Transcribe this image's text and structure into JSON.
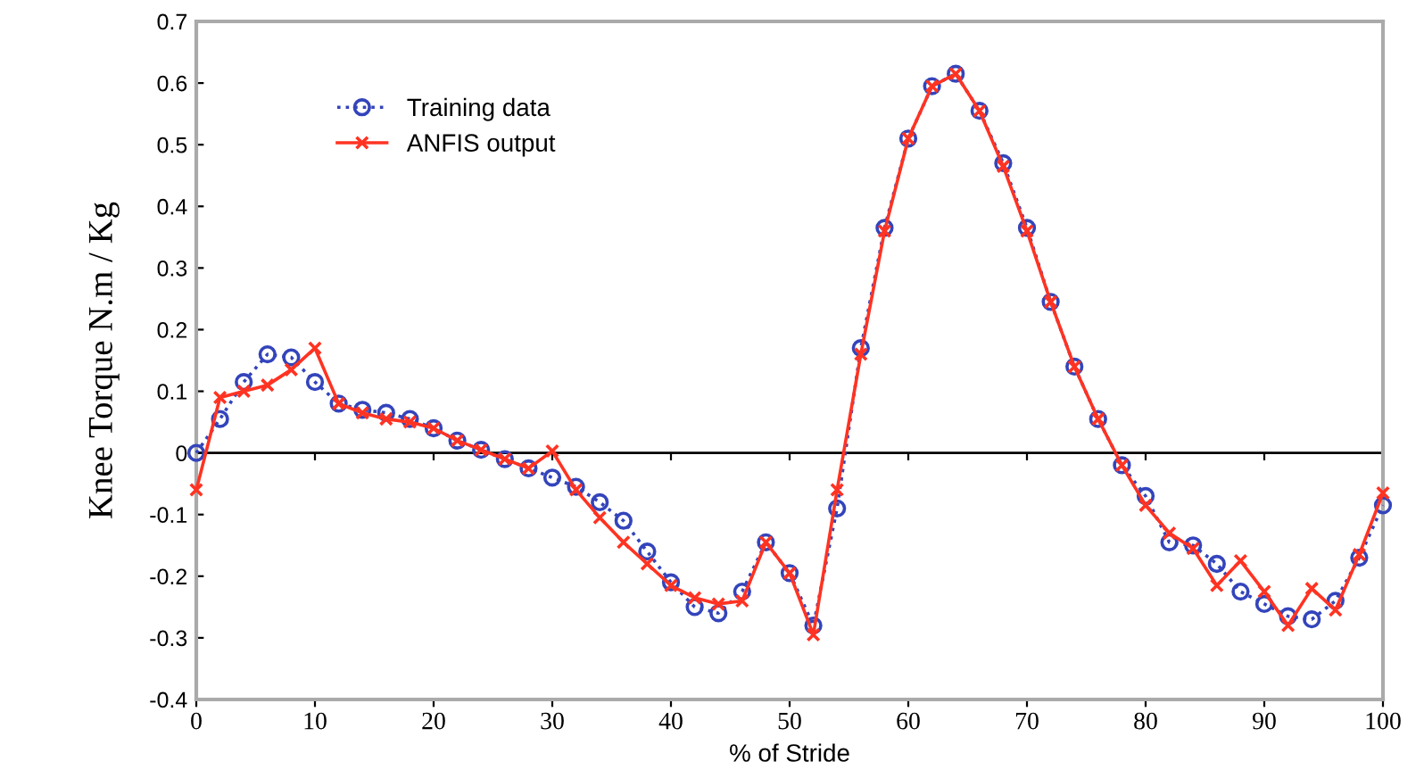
{
  "chart_data": {
    "type": "line",
    "xlabel": "% of Stride",
    "ylabel": "Knee Torque N.m / Kg",
    "x": [
      0,
      2,
      4,
      6,
      8,
      10,
      12,
      14,
      16,
      18,
      20,
      22,
      24,
      26,
      28,
      30,
      32,
      34,
      36,
      38,
      40,
      42,
      44,
      46,
      48,
      50,
      52,
      54,
      56,
      58,
      60,
      62,
      64,
      66,
      68,
      70,
      72,
      74,
      76,
      78,
      80,
      82,
      84,
      86,
      88,
      90,
      92,
      94,
      96,
      98,
      100
    ],
    "series": [
      {
        "name": "Training data",
        "color": "#3344bb",
        "marker": "circle",
        "line_style": "dotted",
        "values": [
          0,
          0.055,
          0.115,
          0.16,
          0.155,
          0.115,
          0.08,
          0.07,
          0.065,
          0.055,
          0.04,
          0.02,
          0.005,
          -0.01,
          -0.025,
          -0.04,
          -0.055,
          -0.08,
          -0.11,
          -0.16,
          -0.21,
          -0.25,
          -0.26,
          -0.225,
          -0.145,
          -0.195,
          -0.28,
          -0.09,
          0.17,
          0.365,
          0.51,
          0.595,
          0.615,
          0.555,
          0.47,
          0.365,
          0.245,
          0.14,
          0.055,
          -0.02,
          -0.07,
          -0.145,
          -0.15,
          -0.18,
          -0.225,
          -0.245,
          -0.265,
          -0.27,
          -0.24,
          -0.17,
          -0.085
        ]
      },
      {
        "name": "ANFIS output",
        "color": "#ff3322",
        "marker": "cross",
        "line_style": "solid",
        "values": [
          -0.06,
          0.09,
          0.1,
          0.11,
          0.135,
          0.17,
          0.08,
          0.065,
          0.055,
          0.05,
          0.04,
          0.02,
          0.005,
          -0.01,
          -0.025,
          0.003,
          -0.06,
          -0.105,
          -0.145,
          -0.18,
          -0.215,
          -0.235,
          -0.245,
          -0.24,
          -0.145,
          -0.195,
          -0.295,
          -0.06,
          0.16,
          0.36,
          0.51,
          0.595,
          0.615,
          0.555,
          0.465,
          0.36,
          0.245,
          0.14,
          0.055,
          -0.02,
          -0.085,
          -0.13,
          -0.155,
          -0.215,
          -0.175,
          -0.225,
          -0.28,
          -0.22,
          -0.255,
          -0.165,
          -0.065
        ]
      }
    ],
    "xlim": [
      0,
      100
    ],
    "xticks": [
      0,
      10,
      20,
      30,
      40,
      50,
      60,
      70,
      80,
      90,
      100
    ],
    "ylim": [
      -0.4,
      0.7
    ],
    "yticks": [
      -0.4,
      -0.3,
      -0.2,
      -0.1,
      0,
      0.1,
      0.2,
      0.3,
      0.4,
      0.5,
      0.6,
      0.7
    ],
    "ref_lines": [
      {
        "axis": "y",
        "value": 0,
        "color": "#000000"
      }
    ],
    "grid": false,
    "legend": "top left"
  }
}
